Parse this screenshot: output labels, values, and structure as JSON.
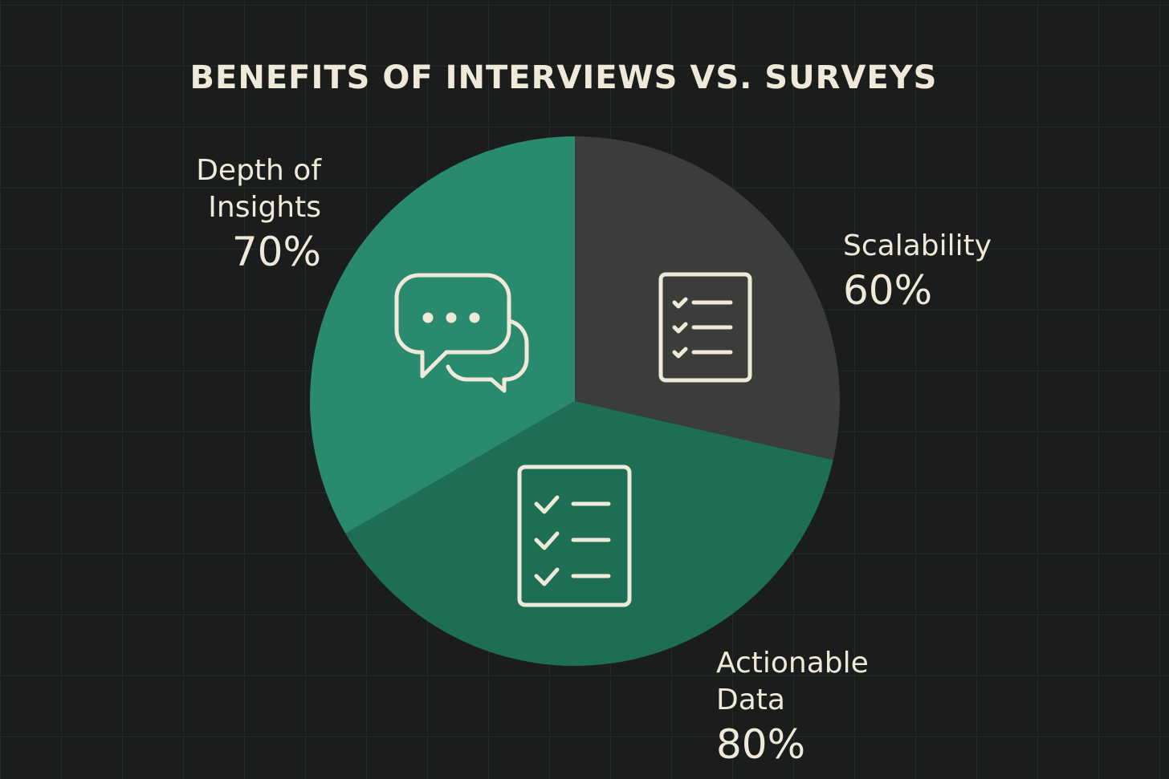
{
  "chart_data": {
    "type": "pie",
    "title": "BENEFITS OF INTERVIEWS VS. SURVEYS",
    "categories": [
      "Scalability",
      "Actionable Data",
      "Depth of Insights"
    ],
    "values": [
      60,
      80,
      70
    ],
    "value_labels": [
      "60%",
      "80%",
      "70%"
    ],
    "colors": [
      "#3b3d3b",
      "#1d6e55",
      "#2a8a6d"
    ]
  }
}
